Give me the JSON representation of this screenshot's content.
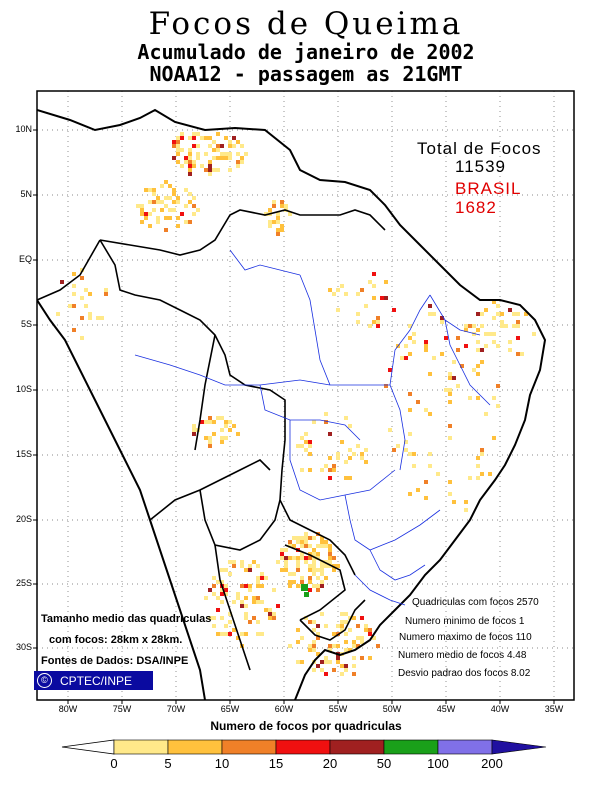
{
  "title": {
    "line1": "Focos de Queima",
    "line2": "Acumulado de janeiro de 2002",
    "line3": "NOAA12 - passagem as 21GMT"
  },
  "totals": {
    "total_label": "Total de Focos",
    "total_value": "11539",
    "brasil_label": "BRASIL",
    "brasil_value": "1682"
  },
  "stats": [
    "Quadriculas com focos 2570",
    "Numero minimo de focos 1",
    "Numero maximo de focos 110",
    "Numero medio de focos 4.48",
    "Desvio padrao dos focos 8.02"
  ],
  "notes": {
    "line1": "Tamanho medio das quadriculas",
    "line2": "com focos: 28km x 28km.",
    "line3": "Fontes de Dados: DSA/INPE"
  },
  "logo": {
    "symbol": "©",
    "text": "CPTEC/INPE"
  },
  "lat_labels": [
    "10N",
    "5N",
    "EQ",
    "5S",
    "10S",
    "15S",
    "20S",
    "25S",
    "30S"
  ],
  "lon_labels": [
    "80W",
    "75W",
    "70W",
    "65W",
    "60W",
    "55W",
    "50W",
    "45W",
    "40W",
    "35W"
  ],
  "colorbar": {
    "title": "Numero de focos por quadriculas",
    "ticks": [
      "0",
      "5",
      "10",
      "15",
      "20",
      "50",
      "100",
      "200"
    ],
    "colors": [
      "#ffe98a",
      "#ffc13d",
      "#f08028",
      "#f01010",
      "#a02020",
      "#1aa01a",
      "#8070e8",
      "#2010a0"
    ]
  }
}
